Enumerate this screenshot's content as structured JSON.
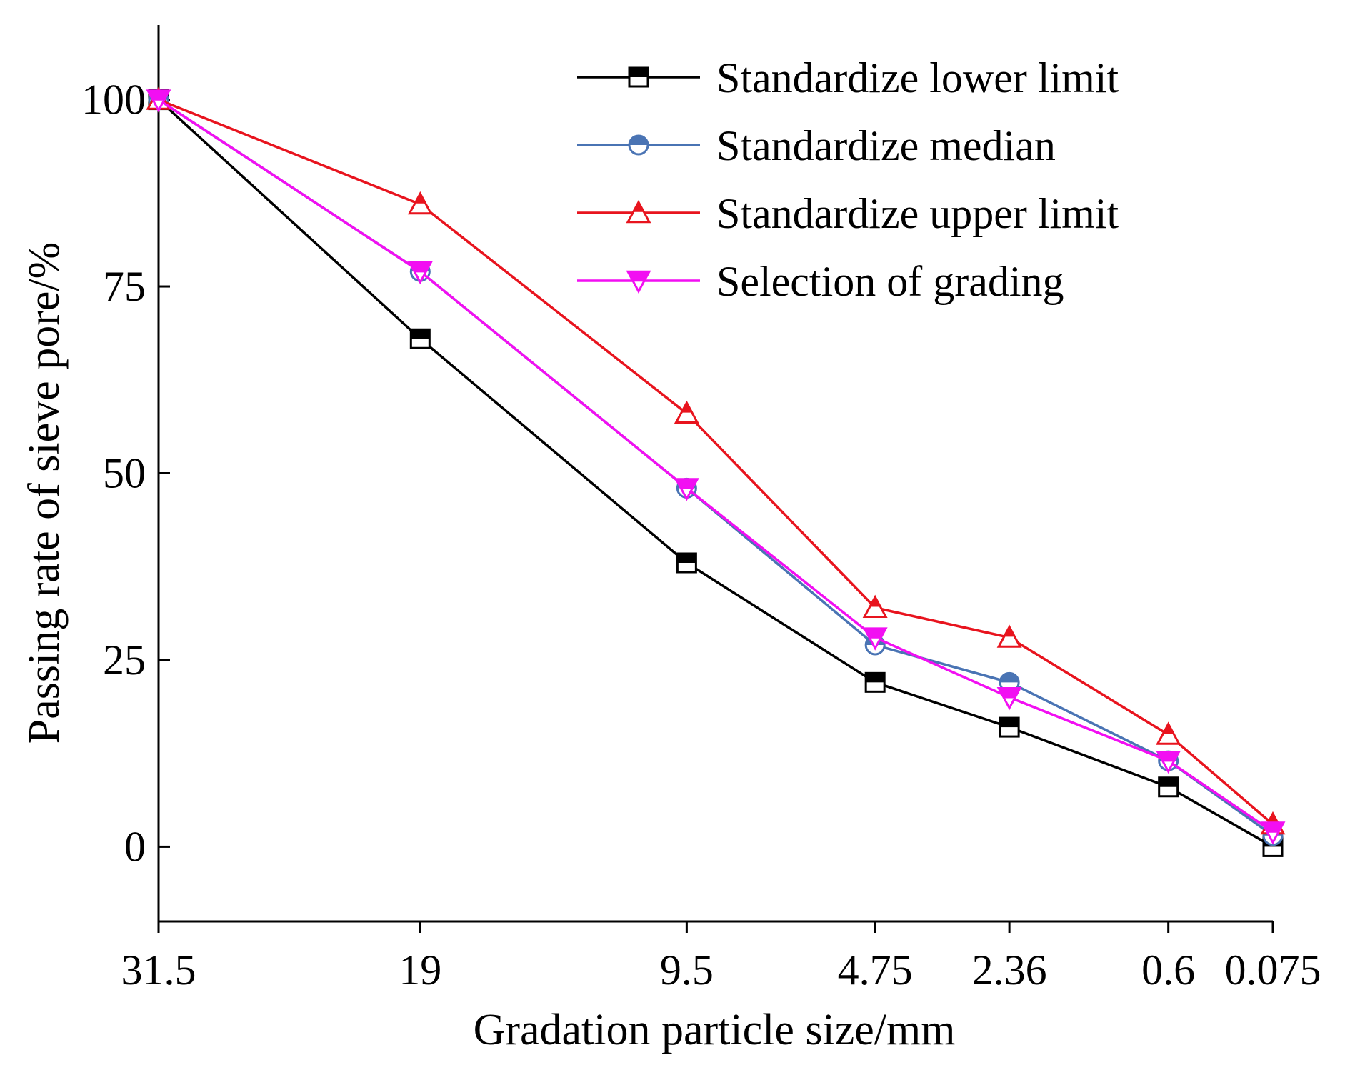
{
  "chart_data": {
    "type": "line",
    "title": "",
    "xlabel": "Gradation particle size/mm",
    "ylabel": "Passing rate of sieve pore/%",
    "x_scale": "square-root of particle size (reversed)",
    "categories": [
      "31.5",
      "19",
      "9.5",
      "4.75",
      "2.36",
      "0.6",
      "0.075"
    ],
    "x": [
      31.5,
      19,
      9.5,
      4.75,
      2.36,
      0.6,
      0.075
    ],
    "y_ticks": [
      0,
      25,
      50,
      75,
      100
    ],
    "ylim": [
      -10,
      110
    ],
    "grid": false,
    "legend_position": "top-right",
    "series": [
      {
        "name": "Standardize lower limit",
        "color": "#000000",
        "marker": "square",
        "values": [
          100,
          68,
          38,
          22,
          16,
          8,
          0
        ]
      },
      {
        "name": "Standardize median",
        "color": "#4a74b4",
        "marker": "circle",
        "values": [
          100,
          77,
          48,
          27,
          22,
          11.5,
          1.5
        ]
      },
      {
        "name": "Standardize upper limit",
        "color": "#e8141e",
        "marker": "triangle-up",
        "values": [
          100,
          86,
          58,
          32,
          28,
          15,
          3
        ]
      },
      {
        "name": "Selection of grading",
        "color": "#f20ff2",
        "marker": "triangle-down",
        "values": [
          100,
          77,
          48,
          28,
          20,
          11.5,
          2
        ]
      }
    ]
  }
}
